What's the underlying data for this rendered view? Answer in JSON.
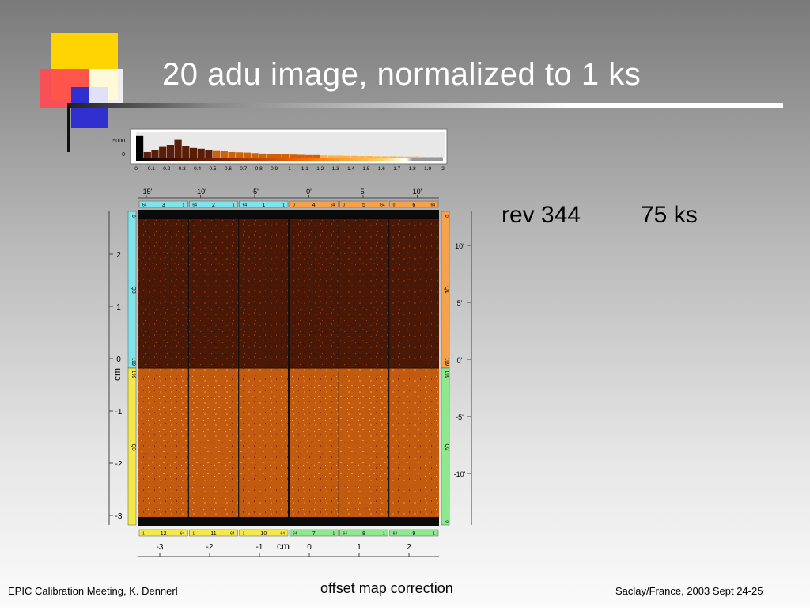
{
  "slide": {
    "title": "20 adu image, normalized to 1 ks",
    "info": {
      "rev": "rev 344",
      "exposure": "75 ks"
    },
    "footer": {
      "left": "EPIC Calibration Meeting, K. Dennerl",
      "center": "offset map correction",
      "right": "Saclay/France, 2003 Sept 24-25"
    }
  },
  "figure": {
    "histogram": {
      "y_ticks": [
        "5000",
        "0"
      ],
      "x_ticks": [
        "0",
        "0.1",
        "0.2",
        "0.3",
        "0.4",
        "0.5",
        "0.6",
        "0.7",
        "0.8",
        "0.9",
        "1",
        "1.1",
        "1.2",
        "1.3",
        "1.4",
        "1.5",
        "1.6",
        "1.7",
        "1.8",
        "1.9",
        "2"
      ],
      "bar_heights": [
        0.85,
        0.22,
        0.3,
        0.42,
        0.5,
        0.7,
        0.45,
        0.38,
        0.35,
        0.3,
        0.26,
        0.25,
        0.22,
        0.21,
        0.2,
        0.18,
        0.16,
        0.15,
        0.14,
        0.13,
        0.12,
        0.11,
        0.1,
        0.1,
        0.09,
        0.08,
        0.08,
        0.07,
        0.07,
        0.06,
        0.06,
        0.05,
        0.05,
        0.05,
        0.04,
        0.04,
        0.04,
        0.03,
        0.03,
        0.03
      ]
    },
    "top_arcmin_ticks": [
      "-15'",
      "-10'",
      "-5'",
      "0'",
      "5'",
      "10'"
    ],
    "bottom_cm_ticks": [
      "-3",
      "-2",
      "-1",
      "0",
      "1",
      "2"
    ],
    "bottom_cm_label": "cm",
    "left_cm_ticks": [
      "2",
      "1",
      "0",
      "-1",
      "-2",
      "-3"
    ],
    "left_cm_label": "cm",
    "right_arcmin_ticks": [
      "10'",
      "5'",
      "0'",
      "-5'",
      "-10'"
    ],
    "ccds_top": [
      {
        "id": "3",
        "left": "64",
        "right": "1",
        "color": "#7fe3ea"
      },
      {
        "id": "2",
        "left": "64",
        "right": "1",
        "color": "#7fe3ea"
      },
      {
        "id": "1",
        "left": "64",
        "right": "1",
        "color": "#7fe3ea"
      },
      {
        "id": "4",
        "left": "0",
        "right": "64",
        "color": "#f7a24a"
      },
      {
        "id": "5",
        "left": "0",
        "right": "64",
        "color": "#f7a24a"
      },
      {
        "id": "6",
        "left": "0",
        "right": "64",
        "color": "#f7a24a"
      }
    ],
    "ccds_bottom": [
      {
        "id": "12",
        "left": "1",
        "right": "64",
        "color": "#f3ea4a"
      },
      {
        "id": "11",
        "left": "1",
        "right": "64",
        "color": "#f3ea4a"
      },
      {
        "id": "10",
        "left": "1",
        "right": "64",
        "color": "#f3ea4a"
      },
      {
        "id": "7",
        "left": "64",
        "right": "1",
        "color": "#8ee88e"
      },
      {
        "id": "8",
        "left": "64",
        "right": "1",
        "color": "#8ee88e"
      },
      {
        "id": "9",
        "left": "64",
        "right": "1",
        "color": "#8ee88e"
      }
    ],
    "quadrant_labels": {
      "left_top": "Q0",
      "left_bottom": "Q3",
      "right_top": "Q1",
      "right_bottom": "Q2",
      "left_top_end": "0",
      "left_bottom_start": "199",
      "left_mid": "199",
      "right_top_end": "0",
      "right_mid_top": "199",
      "right_mid_bottom": "199",
      "right_bottom_end": "0"
    },
    "colors": {
      "top_half": "#5a1e08",
      "bottom_half": "#c55e12",
      "accent": "#ff7a1a"
    }
  }
}
